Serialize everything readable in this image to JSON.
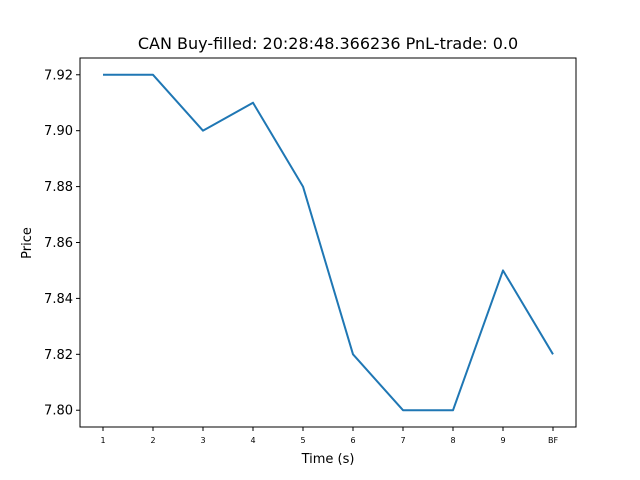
{
  "chart_data": {
    "type": "line",
    "title": "CAN  Buy-filled:  20:28:48.366236  PnL-trade:  0.0",
    "xlabel": "Time (s)",
    "ylabel": "Price",
    "categories": [
      "1",
      "2",
      "3",
      "4",
      "5",
      "6",
      "7",
      "8",
      "9",
      "BF"
    ],
    "series": [
      {
        "values": [
          7.92,
          7.92,
          7.9,
          7.91,
          7.88,
          7.82,
          7.8,
          7.8,
          7.85,
          7.82
        ]
      }
    ],
    "ylim": [
      7.794,
      7.926
    ],
    "yticks": [
      "7.80",
      "7.82",
      "7.84",
      "7.86",
      "7.88",
      "7.90",
      "7.92"
    ],
    "grid": false,
    "line_color": "#1f77b4"
  }
}
